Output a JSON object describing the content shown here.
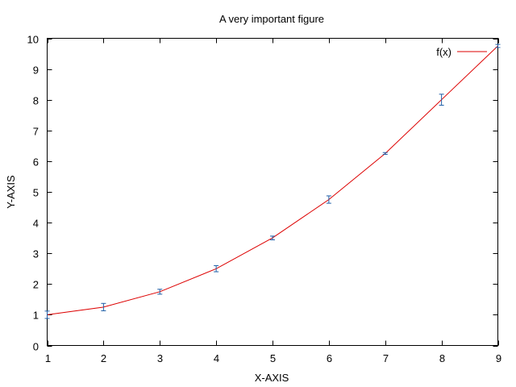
{
  "chart_data": {
    "type": "line",
    "title": "A very important figure",
    "xlabel": "X-AXIS",
    "ylabel": "Y-AXIS",
    "xlim": [
      1,
      9
    ],
    "ylim": [
      0,
      10
    ],
    "x_ticks": [
      "1",
      "2",
      "3",
      "4",
      "5",
      "6",
      "7",
      "8",
      "9"
    ],
    "y_ticks": [
      "0",
      "1",
      "2",
      "3",
      "4",
      "5",
      "6",
      "7",
      "8",
      "9",
      "10"
    ],
    "grid": false,
    "legend_position": "top-right",
    "series": [
      {
        "name": "f(x)",
        "color": "#dd0000",
        "x": [
          1,
          2,
          3,
          4,
          5,
          6,
          7,
          8,
          9
        ],
        "y": [
          1.0,
          1.25,
          1.75,
          2.5,
          3.5,
          4.75,
          6.25,
          8.0,
          9.75
        ],
        "error": [
          0.12,
          0.12,
          0.08,
          0.1,
          0.06,
          0.12,
          0.03,
          0.18,
          0.05
        ],
        "errorbar_color": "#1f5fa8"
      }
    ]
  }
}
